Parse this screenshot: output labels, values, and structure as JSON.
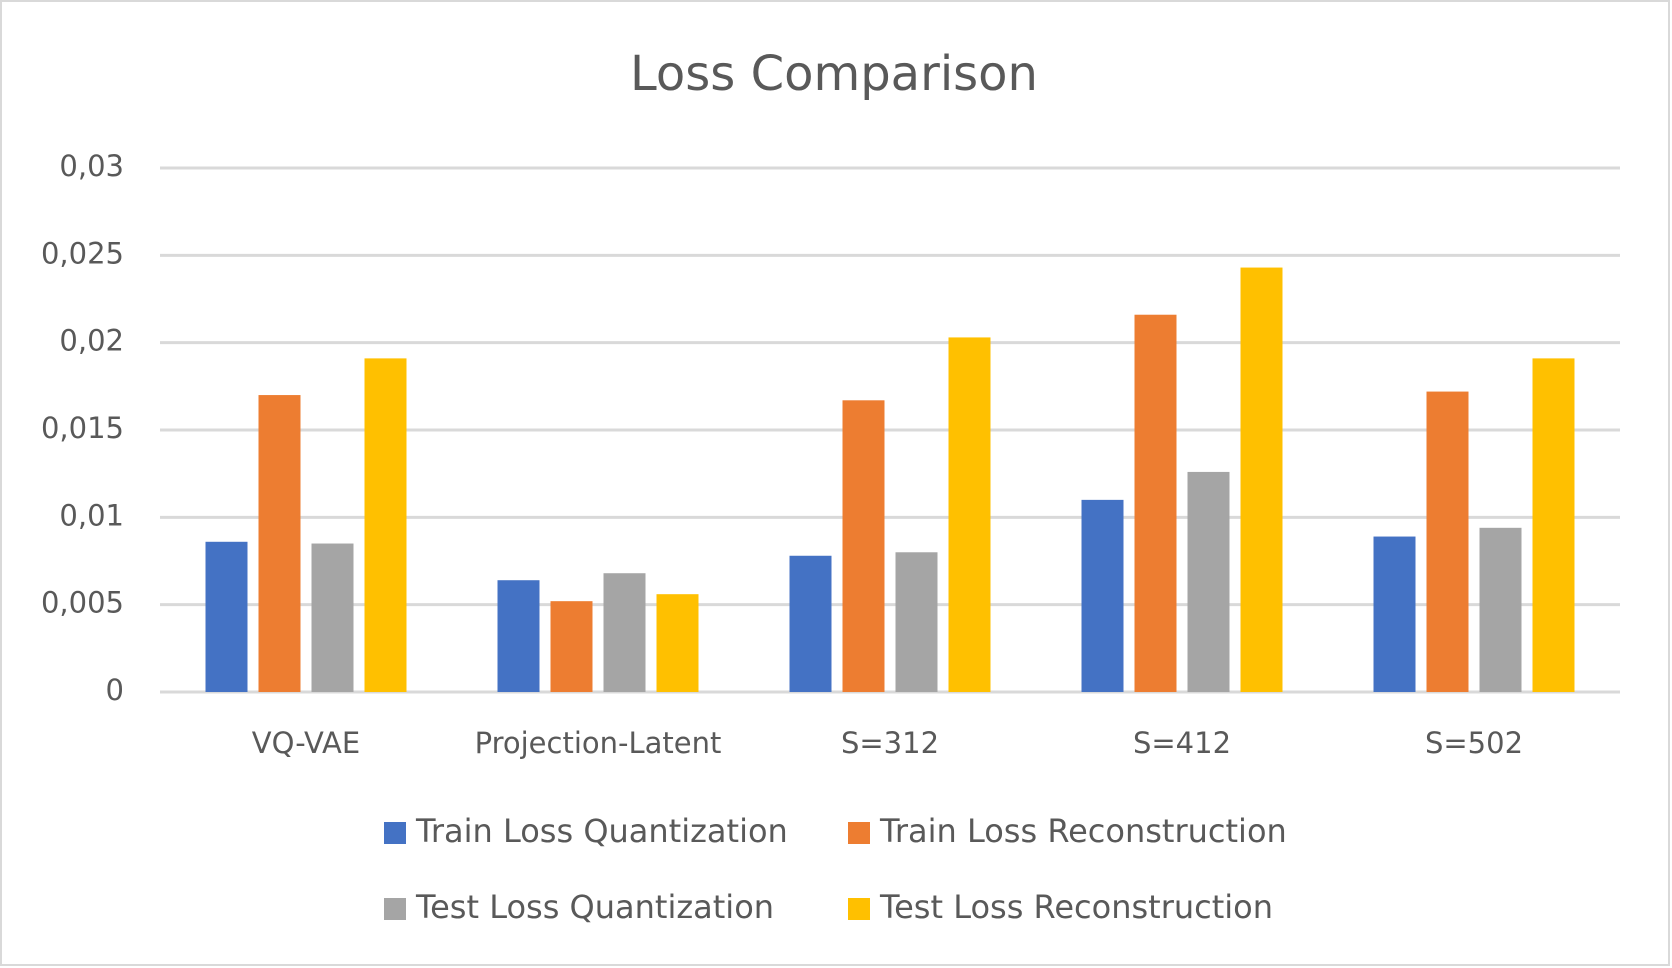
{
  "chart_data": {
    "type": "bar",
    "title": "Loss Comparison",
    "categories": [
      "VQ-VAE",
      "Projection-Latent",
      "S=312",
      "S=412",
      "S=502"
    ],
    "series": [
      {
        "name": "Train Loss Quantization",
        "color": "#4472c4",
        "values": [
          0.0086,
          0.0064,
          0.0078,
          0.011,
          0.0089
        ]
      },
      {
        "name": "Train Loss Reconstruction",
        "color": "#ed7d31",
        "values": [
          0.017,
          0.0052,
          0.0167,
          0.0216,
          0.0172
        ]
      },
      {
        "name": "Test Loss Quantization",
        "color": "#a5a5a5",
        "values": [
          0.0085,
          0.0068,
          0.008,
          0.0126,
          0.0094
        ]
      },
      {
        "name": "Test Loss Reconstruction",
        "color": "#ffc000",
        "values": [
          0.0191,
          0.0056,
          0.0203,
          0.0243,
          0.0191
        ]
      }
    ],
    "ylim": [
      0,
      0.03
    ],
    "yticks": [
      0,
      {
        "value": 0.005,
        "label": "0,005"
      },
      {
        "value": 0.01,
        "label": "0,01"
      },
      {
        "value": 0.015,
        "label": "0,015"
      },
      {
        "value": 0.02,
        "label": "0,02"
      },
      {
        "value": 0.025,
        "label": "0,025"
      },
      {
        "value": 0.03,
        "label": "0,03"
      }
    ],
    "grid": true,
    "legend": "bottom"
  }
}
